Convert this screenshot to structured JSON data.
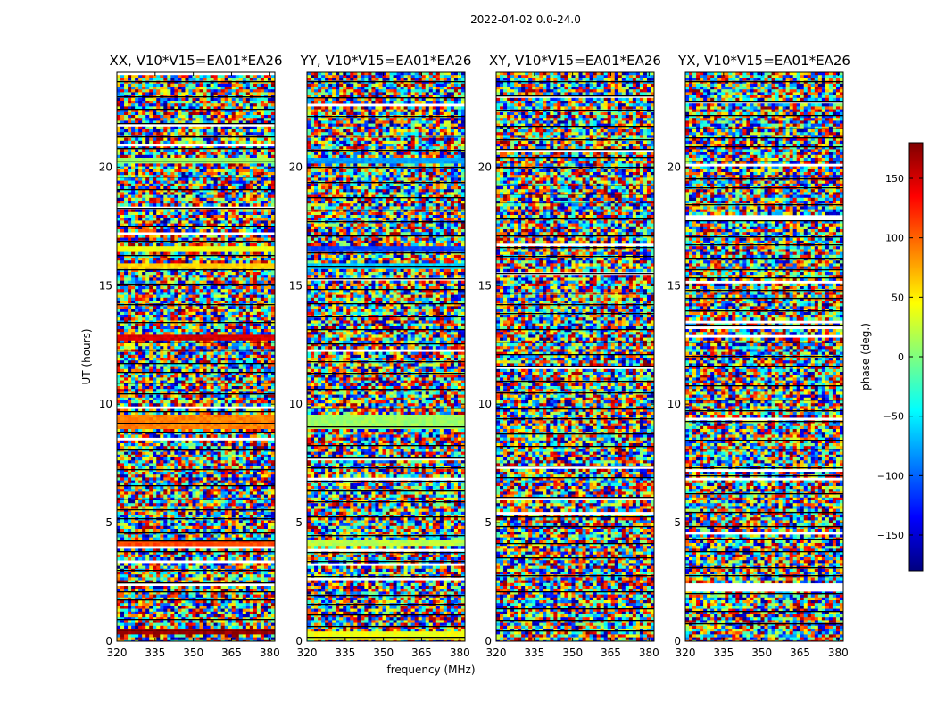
{
  "figure": {
    "suptitle": "2022-04-02 0.0-24.0",
    "xlabel": "frequency (MHz)",
    "ylabel": "UT (hours)"
  },
  "colorbar": {
    "label": "phase (deg.)",
    "range": [
      -180,
      180
    ],
    "ticks": [
      150,
      100,
      50,
      0,
      -50,
      -100,
      -150
    ],
    "tick_labels": [
      "150",
      "100",
      "50",
      "0",
      "−50",
      "−100",
      "−150"
    ],
    "colormap": [
      "#00007f",
      "#0000ff",
      "#007fff",
      "#00ffff",
      "#7fff7f",
      "#ffff00",
      "#ff7f00",
      "#ff0000",
      "#7f0000"
    ]
  },
  "chart_data": [
    {
      "type": "heatmap",
      "title": "XX, V10*V15=EA01*EA26",
      "xlabel": "frequency (MHz)",
      "ylabel": "UT (hours)",
      "xlim": [
        320,
        382
      ],
      "ylim": [
        0,
        24
      ],
      "xticks": [
        320,
        335,
        350,
        365,
        380
      ],
      "yticks": [
        0,
        5,
        10,
        15,
        20
      ],
      "zlabel": "phase (deg.)",
      "zlim": [
        -180,
        180
      ],
      "smooth_bands": [
        {
          "t": [
            20.1,
            20.4
          ],
          "phase": 10
        },
        {
          "t": [
            16.4,
            16.7
          ],
          "phase": 40
        },
        {
          "t": [
            15.7,
            15.95
          ],
          "phase": 60
        },
        {
          "t": [
            12.7,
            12.9
          ],
          "phase": 150
        },
        {
          "t": [
            9.0,
            9.5
          ],
          "phase": 90
        },
        {
          "t": [
            4.0,
            4.3
          ],
          "phase": 110
        },
        {
          "t": [
            0.3,
            0.5
          ],
          "phase": 170
        }
      ]
    },
    {
      "type": "heatmap",
      "title": "YY, V10*V15=EA01*EA26",
      "xlabel": "frequency (MHz)",
      "ylabel": "UT (hours)",
      "xlim": [
        320,
        382
      ],
      "ylim": [
        0,
        24
      ],
      "xticks": [
        320,
        335,
        350,
        365,
        380
      ],
      "yticks": [
        0,
        5,
        10,
        15,
        20
      ],
      "zlabel": "phase (deg.)",
      "zlim": [
        -180,
        180
      ],
      "smooth_bands": [
        {
          "t": [
            20.1,
            20.4
          ],
          "phase": -80
        },
        {
          "t": [
            16.4,
            16.7
          ],
          "phase": -110
        },
        {
          "t": [
            15.7,
            15.95
          ],
          "phase": -60
        },
        {
          "t": [
            9.0,
            9.5
          ],
          "phase": 10
        },
        {
          "t": [
            4.0,
            4.3
          ],
          "phase": 20
        },
        {
          "t": [
            0.1,
            0.4
          ],
          "phase": 40
        }
      ]
    },
    {
      "type": "heatmap",
      "title": "XY, V10*V15=EA01*EA26",
      "xlabel": "frequency (MHz)",
      "ylabel": "UT (hours)",
      "xlim": [
        320,
        382
      ],
      "ylim": [
        0,
        24
      ],
      "xticks": [
        320,
        335,
        350,
        365,
        380
      ],
      "yticks": [
        0,
        5,
        10,
        15,
        20
      ],
      "zlabel": "phase (deg.)",
      "zlim": [
        -180,
        180
      ],
      "smooth_bands": []
    },
    {
      "type": "heatmap",
      "title": "YX, V10*V15=EA01*EA26",
      "xlabel": "frequency (MHz)",
      "ylabel": "UT (hours)",
      "xlim": [
        320,
        382
      ],
      "ylim": [
        0,
        24
      ],
      "xticks": [
        320,
        335,
        350,
        365,
        380
      ],
      "yticks": [
        0,
        5,
        10,
        15,
        20
      ],
      "zlabel": "phase (deg.)",
      "zlim": [
        -180,
        180
      ],
      "smooth_bands": []
    }
  ]
}
